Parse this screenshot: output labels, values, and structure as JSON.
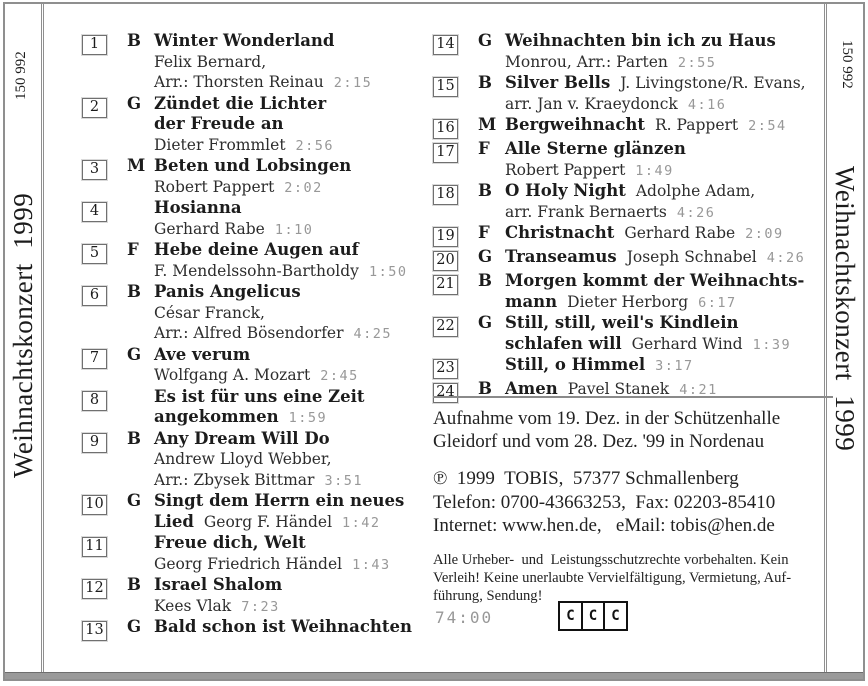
{
  "spine_left": {
    "catalog": "150 992",
    "title": "Weihnachtskonzert  1999"
  },
  "spine_right": {
    "catalog": "150 992",
    "title": "Weihnachtskonzert  1999"
  },
  "tracks_left": [
    {
      "num": "1",
      "letter": "B",
      "lines": [
        {
          "b": "Winter Wonderland"
        },
        {
          "r": "Felix Bernard,"
        },
        {
          "r": "Arr.: Thorsten Reinau",
          "t": "2:15"
        }
      ]
    },
    {
      "num": "2",
      "letter": "G",
      "lines": [
        {
          "b": "Zündet die Lichter"
        },
        {
          "b": "der Freude an"
        },
        {
          "r": "Dieter Frommlet",
          "t": "2:56"
        }
      ]
    },
    {
      "num": "3",
      "letter": "M",
      "lines": [
        {
          "b": "Beten und Lobsingen"
        },
        {
          "r": "Robert Pappert",
          "t": "2:02"
        }
      ]
    },
    {
      "num": "4",
      "letter": "",
      "lines": [
        {
          "b": "Hosianna"
        },
        {
          "r": "Gerhard Rabe",
          "t": "1:10"
        }
      ]
    },
    {
      "num": "5",
      "letter": "F",
      "lines": [
        {
          "b": "Hebe deine Augen auf"
        },
        {
          "r": "F. Mendelssohn-Bartholdy",
          "t": "1:50"
        }
      ]
    },
    {
      "num": "6",
      "letter": "B",
      "lines": [
        {
          "b": "Panis Angelicus"
        },
        {
          "r": "César Franck,"
        },
        {
          "r": "Arr.: Alfred Bösendorfer",
          "t": "4:25"
        }
      ]
    },
    {
      "num": "7",
      "letter": "G",
      "lines": [
        {
          "b": "Ave verum"
        },
        {
          "r": "Wolfgang A. Mozart",
          "t": "2:45"
        }
      ]
    },
    {
      "num": "8",
      "letter": "",
      "lines": [
        {
          "b": "Es ist für uns eine Zeit"
        },
        {
          "b": "angekommen",
          "t": "1:59"
        }
      ]
    },
    {
      "num": "9",
      "letter": "B",
      "lines": [
        {
          "b": "Any Dream Will Do"
        },
        {
          "r": "Andrew Lloyd Webber,"
        },
        {
          "r": "Arr.: Zbysek Bittmar",
          "t": "3:51"
        }
      ]
    },
    {
      "num": "10",
      "letter": "G",
      "lines": [
        {
          "b": "Singt dem Herrn ein neues"
        },
        {
          "b": "Lied",
          "r": "Georg F. Händel",
          "t": "1:42"
        }
      ]
    },
    {
      "num": "11",
      "letter": "",
      "lines": [
        {
          "b": "Freue dich, Welt"
        },
        {
          "r": "Georg Friedrich Händel",
          "t": "1:43"
        }
      ]
    },
    {
      "num": "12",
      "letter": "B",
      "lines": [
        {
          "b": "Israel Shalom"
        },
        {
          "r": "Kees Vlak",
          "t": "7:23"
        }
      ]
    },
    {
      "num": "13",
      "letter": "G",
      "lines": [
        {
          "b": "Bald schon ist Weihnachten"
        }
      ]
    }
  ],
  "tracks_right": [
    {
      "num": "14",
      "letter": "G",
      "lines": [
        {
          "b": "Weihnachten bin ich zu Haus"
        },
        {
          "r": "Monrou, Arr.: Parten",
          "t": "2:55"
        }
      ]
    },
    {
      "num": "15",
      "letter": "B",
      "lines": [
        {
          "b": "Silver Bells",
          "r": "J. Livingstone/R. Evans,"
        },
        {
          "r": "arr. Jan v. Kraeydonck",
          "t": "4:16"
        }
      ]
    },
    {
      "num": "16",
      "letter": "M",
      "lines": [
        {
          "b": "Bergweihnacht",
          "r": "R. Pappert",
          "t": "2:54"
        }
      ]
    },
    {
      "num": "17",
      "letter": "F",
      "lines": [
        {
          "b": "Alle Sterne glänzen"
        },
        {
          "r": "Robert Pappert",
          "t": "1:49"
        }
      ]
    },
    {
      "num": "18",
      "letter": "B",
      "lines": [
        {
          "b": "O Holy Night",
          "r": "Adolphe Adam,"
        },
        {
          "r": "arr. Frank Bernaerts",
          "t": "4:26"
        }
      ]
    },
    {
      "num": "19",
      "letter": "F",
      "lines": [
        {
          "b": "Christnacht",
          "r": "Gerhard Rabe",
          "t": "2:09"
        }
      ]
    },
    {
      "num": "20",
      "letter": "G",
      "lines": [
        {
          "b": "Transeamus",
          "r": "Joseph Schnabel",
          "t": "4:26"
        }
      ]
    },
    {
      "num": "21",
      "letter": "B",
      "lines": [
        {
          "b": "Morgen kommt der Weihnachts-"
        },
        {
          "b": "mann",
          "r": "Dieter Herborg",
          "t": "6:17"
        }
      ]
    },
    {
      "num": "22",
      "letter": "G",
      "lines": [
        {
          "b": "Still, still, weil's Kindlein"
        },
        {
          "b": "schlafen will",
          "r": "Gerhard Wind",
          "t": "1:39"
        }
      ]
    },
    {
      "num": "23",
      "letter": "",
      "lines": [
        {
          "b": "Still, o Himmel",
          "t": "3:17"
        }
      ]
    },
    {
      "num": "24",
      "letter": "B",
      "lines": [
        {
          "b": "Amen",
          "r": "Pavel Stanek",
          "t": "4:21"
        }
      ]
    }
  ],
  "info": {
    "recording_lines": [
      "Aufnahme vom 19. Dez. in der Schützenhalle",
      "Gleidorf und vom 28. Dez. '99 in Nordenau"
    ],
    "publisher_lines": [
      "℗  1999  TOBIS,  57377 Schmallenberg",
      "Telefon: 0700-43663253,  Fax: 02203-85410",
      "Internet: www.hen.de,   eMail: tobis@hen.de"
    ],
    "legal_lines": [
      "Alle Urheber-  und  Leistungsschutzrechte vorbehalten. Kein",
      "Verleih! Keine unerlaubte Vervielfältigung, Vermietung, Auf-",
      "führung, Sendung!"
    ]
  },
  "total_time": "74:00",
  "spars_logo": {
    "letters": [
      "C",
      "C",
      "C"
    ]
  },
  "colors": {
    "time_gray": "#989898",
    "border_gray": "#8f8f8f"
  }
}
